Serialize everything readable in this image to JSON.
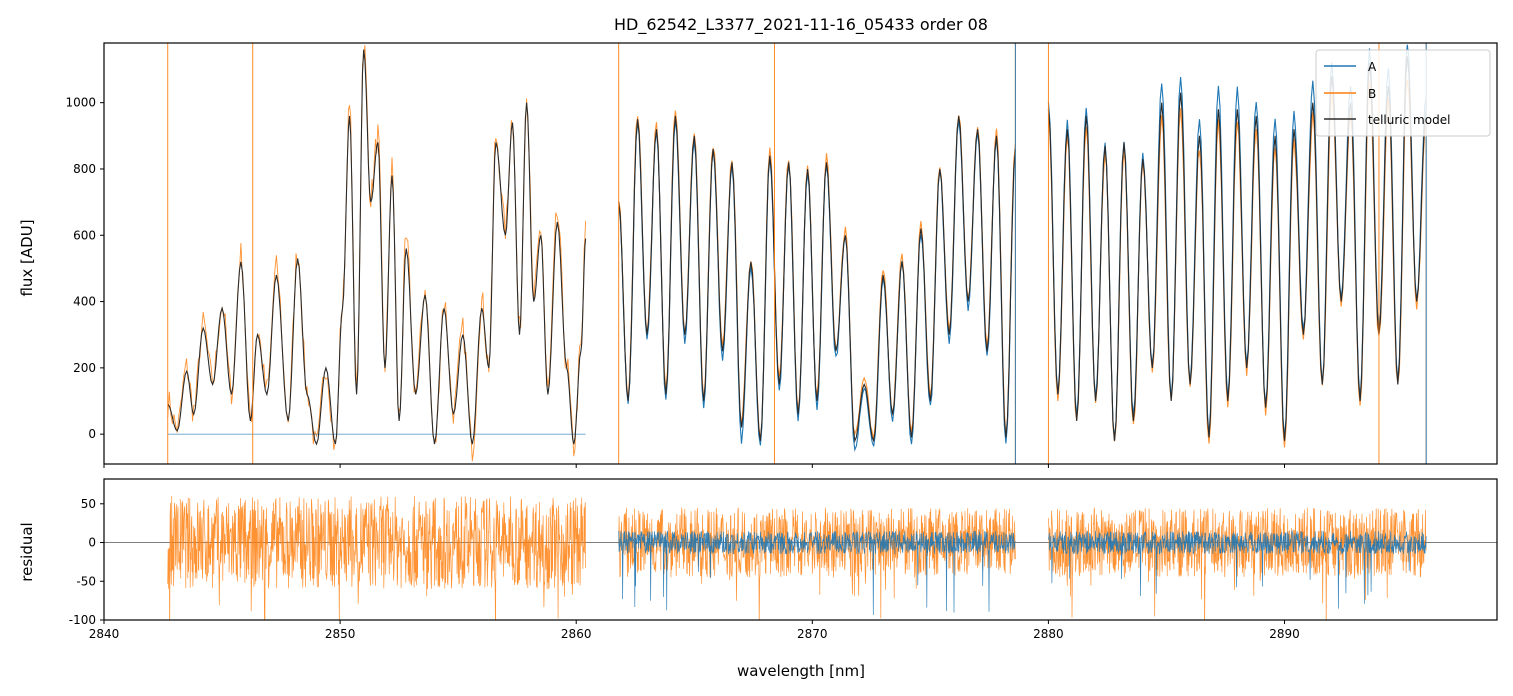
{
  "chart_data": [
    {
      "type": "line",
      "panel": "top",
      "title": "HD_62542_L3377_2021-11-16_05433  order 08",
      "xlabel": "",
      "ylabel": "flux [ADU]",
      "xlim": [
        2840,
        2899
      ],
      "ylim": [
        -90,
        1180
      ],
      "xticks": [
        2840,
        2850,
        2860,
        2870,
        2880,
        2890
      ],
      "yticks": [
        0,
        200,
        400,
        600,
        800,
        1000
      ],
      "legend": {
        "placement": "top-right",
        "entries": [
          "A",
          "B",
          "telluric model"
        ]
      },
      "segments": [
        {
          "name": "segment 1",
          "x": [
            2842.7,
            2843.1,
            2843.5,
            2843.8,
            2844.2,
            2844.6,
            2845.0,
            2845.4,
            2845.8,
            2846.2,
            2846.5,
            2846.9,
            2847.3,
            2847.8,
            2848.2,
            2848.6,
            2849.0,
            2849.4,
            2849.8,
            2850.1,
            2850.4,
            2850.7,
            2851.0,
            2851.3,
            2851.6,
            2851.9,
            2852.2,
            2852.5,
            2852.8,
            2853.2,
            2853.6,
            2854.0,
            2854.4,
            2854.8,
            2855.2,
            2855.6,
            2856.0,
            2856.3,
            2856.6,
            2857.0,
            2857.3,
            2857.6,
            2857.9,
            2858.2,
            2858.5,
            2858.8,
            2859.2,
            2859.6,
            2859.9,
            2860.2,
            2860.4
          ],
          "model": [
            90,
            10,
            190,
            60,
            320,
            150,
            380,
            120,
            520,
            40,
            300,
            120,
            480,
            40,
            530,
            120,
            -30,
            200,
            -30,
            380,
            960,
            120,
            1160,
            700,
            880,
            200,
            780,
            40,
            560,
            120,
            420,
            -30,
            380,
            60,
            300,
            -30,
            380,
            200,
            880,
            600,
            940,
            300,
            1000,
            400,
            600,
            120,
            640,
            200,
            -30,
            250,
            590
          ],
          "A": [
            0,
            0,
            0,
            0,
            0,
            0,
            0,
            0,
            0,
            0,
            0,
            0,
            0,
            0,
            0,
            0,
            0,
            0,
            0,
            0,
            0,
            0,
            0,
            0,
            0,
            0,
            0,
            0,
            0,
            0,
            0,
            0,
            0,
            0,
            0,
            0,
            0,
            0,
            0,
            0,
            0,
            0,
            0,
            0,
            0,
            0,
            0,
            0,
            0,
            0,
            0
          ],
          "B": [
            95,
            20,
            200,
            70,
            330,
            160,
            390,
            130,
            540,
            50,
            310,
            130,
            500,
            50,
            550,
            130,
            -40,
            210,
            -40,
            390,
            980,
            130,
            1180,
            720,
            900,
            210,
            800,
            50,
            580,
            130,
            440,
            -40,
            400,
            70,
            310,
            -40,
            400,
            210,
            900,
            620,
            960,
            310,
            1020,
            410,
            620,
            130,
            660,
            210,
            -40,
            260,
            610
          ]
        },
        {
          "name": "segment 2",
          "x": [
            2861.8,
            2862.2,
            2862.6,
            2863.0,
            2863.4,
            2863.8,
            2864.2,
            2864.6,
            2865.0,
            2865.4,
            2865.8,
            2866.2,
            2866.6,
            2867.0,
            2867.4,
            2867.8,
            2868.2,
            2868.6,
            2869.0,
            2869.4,
            2869.8,
            2870.2,
            2870.6,
            2871.0,
            2871.4,
            2871.8,
            2872.2,
            2872.6,
            2873.0,
            2873.4,
            2873.8,
            2874.2,
            2874.6,
            2875.0,
            2875.4,
            2875.8,
            2876.2,
            2876.6,
            2877.0,
            2877.4,
            2877.8,
            2878.2,
            2878.6
          ],
          "model": [
            700,
            100,
            950,
            300,
            920,
            120,
            960,
            300,
            900,
            100,
            860,
            250,
            820,
            20,
            520,
            -20,
            840,
            150,
            820,
            60,
            800,
            100,
            820,
            250,
            600,
            -20,
            150,
            -20,
            480,
            60,
            520,
            -10,
            620,
            100,
            800,
            300,
            960,
            400,
            920,
            250,
            900,
            -10,
            860
          ],
          "A": [
            690,
            90,
            940,
            280,
            915,
            100,
            950,
            280,
            890,
            80,
            850,
            230,
            815,
            -20,
            510,
            -40,
            830,
            130,
            815,
            40,
            795,
            80,
            815,
            230,
            595,
            -40,
            140,
            -40,
            470,
            40,
            515,
            -30,
            610,
            80,
            790,
            280,
            950,
            380,
            915,
            230,
            895,
            -30,
            855
          ],
          "B": [
            710,
            110,
            970,
            310,
            935,
            130,
            975,
            310,
            915,
            110,
            875,
            260,
            835,
            30,
            535,
            -10,
            855,
            160,
            835,
            70,
            815,
            110,
            835,
            260,
            615,
            -10,
            160,
            -10,
            495,
            70,
            535,
            0,
            635,
            110,
            815,
            310,
            975,
            410,
            935,
            260,
            915,
            0,
            875
          ]
        },
        {
          "name": "segment 3",
          "x": [
            2880.0,
            2880.4,
            2880.8,
            2881.2,
            2881.6,
            2882.0,
            2882.4,
            2882.8,
            2883.2,
            2883.6,
            2884.0,
            2884.4,
            2884.8,
            2885.2,
            2885.6,
            2886.0,
            2886.4,
            2886.8,
            2887.2,
            2887.6,
            2888.0,
            2888.4,
            2888.8,
            2889.2,
            2889.6,
            2890.0,
            2890.4,
            2890.8,
            2891.2,
            2891.6,
            2892.0,
            2892.4,
            2892.8,
            2893.2,
            2893.6,
            2894.0,
            2894.4,
            2894.8,
            2895.2,
            2895.6,
            2896.0
          ],
          "model": [
            980,
            120,
            920,
            40,
            960,
            100,
            870,
            -20,
            880,
            40,
            830,
            200,
            1000,
            100,
            1030,
            150,
            900,
            -10,
            980,
            100,
            980,
            200,
            960,
            80,
            900,
            -20,
            920,
            300,
            1000,
            150,
            1080,
            400,
            1000,
            100,
            1120,
            300,
            1050,
            150,
            1140,
            400,
            980
          ],
          "A": [
            1000,
            130,
            940,
            50,
            980,
            110,
            880,
            -10,
            890,
            50,
            840,
            210,
            1060,
            110,
            1080,
            160,
            950,
            0,
            1050,
            110,
            1040,
            210,
            1000,
            90,
            950,
            -10,
            970,
            310,
            1060,
            160,
            1120,
            410,
            1050,
            110,
            1160,
            310,
            1100,
            160,
            1180,
            410,
            1020
          ],
          "B": [
            950,
            110,
            900,
            30,
            930,
            90,
            850,
            -30,
            860,
            30,
            810,
            190,
            960,
            90,
            980,
            140,
            870,
            -20,
            940,
            90,
            940,
            190,
            920,
            70,
            870,
            -30,
            880,
            290,
            960,
            140,
            1020,
            390,
            960,
            90,
            1060,
            290,
            1000,
            140,
            1080,
            390,
            940
          ]
        }
      ]
    },
    {
      "type": "line",
      "panel": "bottom",
      "title": "",
      "xlabel": "wavelength [nm]",
      "ylabel": "residual",
      "xlim": [
        2840,
        2899
      ],
      "ylim": [
        -100,
        82
      ],
      "xticks": [
        2840,
        2850,
        2860,
        2870,
        2880,
        2890
      ],
      "yticks": [
        50,
        0,
        -50,
        -100
      ],
      "series": [
        {
          "name": "A",
          "ranges": [
            [
              2861.8,
              2878.6
            ],
            [
              2880.0,
              2896.0
            ]
          ],
          "typical_amplitude": 15
        },
        {
          "name": "B",
          "ranges": [
            [
              2842.7,
              2860.4
            ],
            [
              2861.8,
              2878.6
            ],
            [
              2880.0,
              2896.0
            ]
          ],
          "typical_amplitude": 45
        }
      ]
    }
  ],
  "colors": {
    "A": "#1f77b4",
    "B": "#ff7f0e",
    "model": "#2b2b2b"
  }
}
